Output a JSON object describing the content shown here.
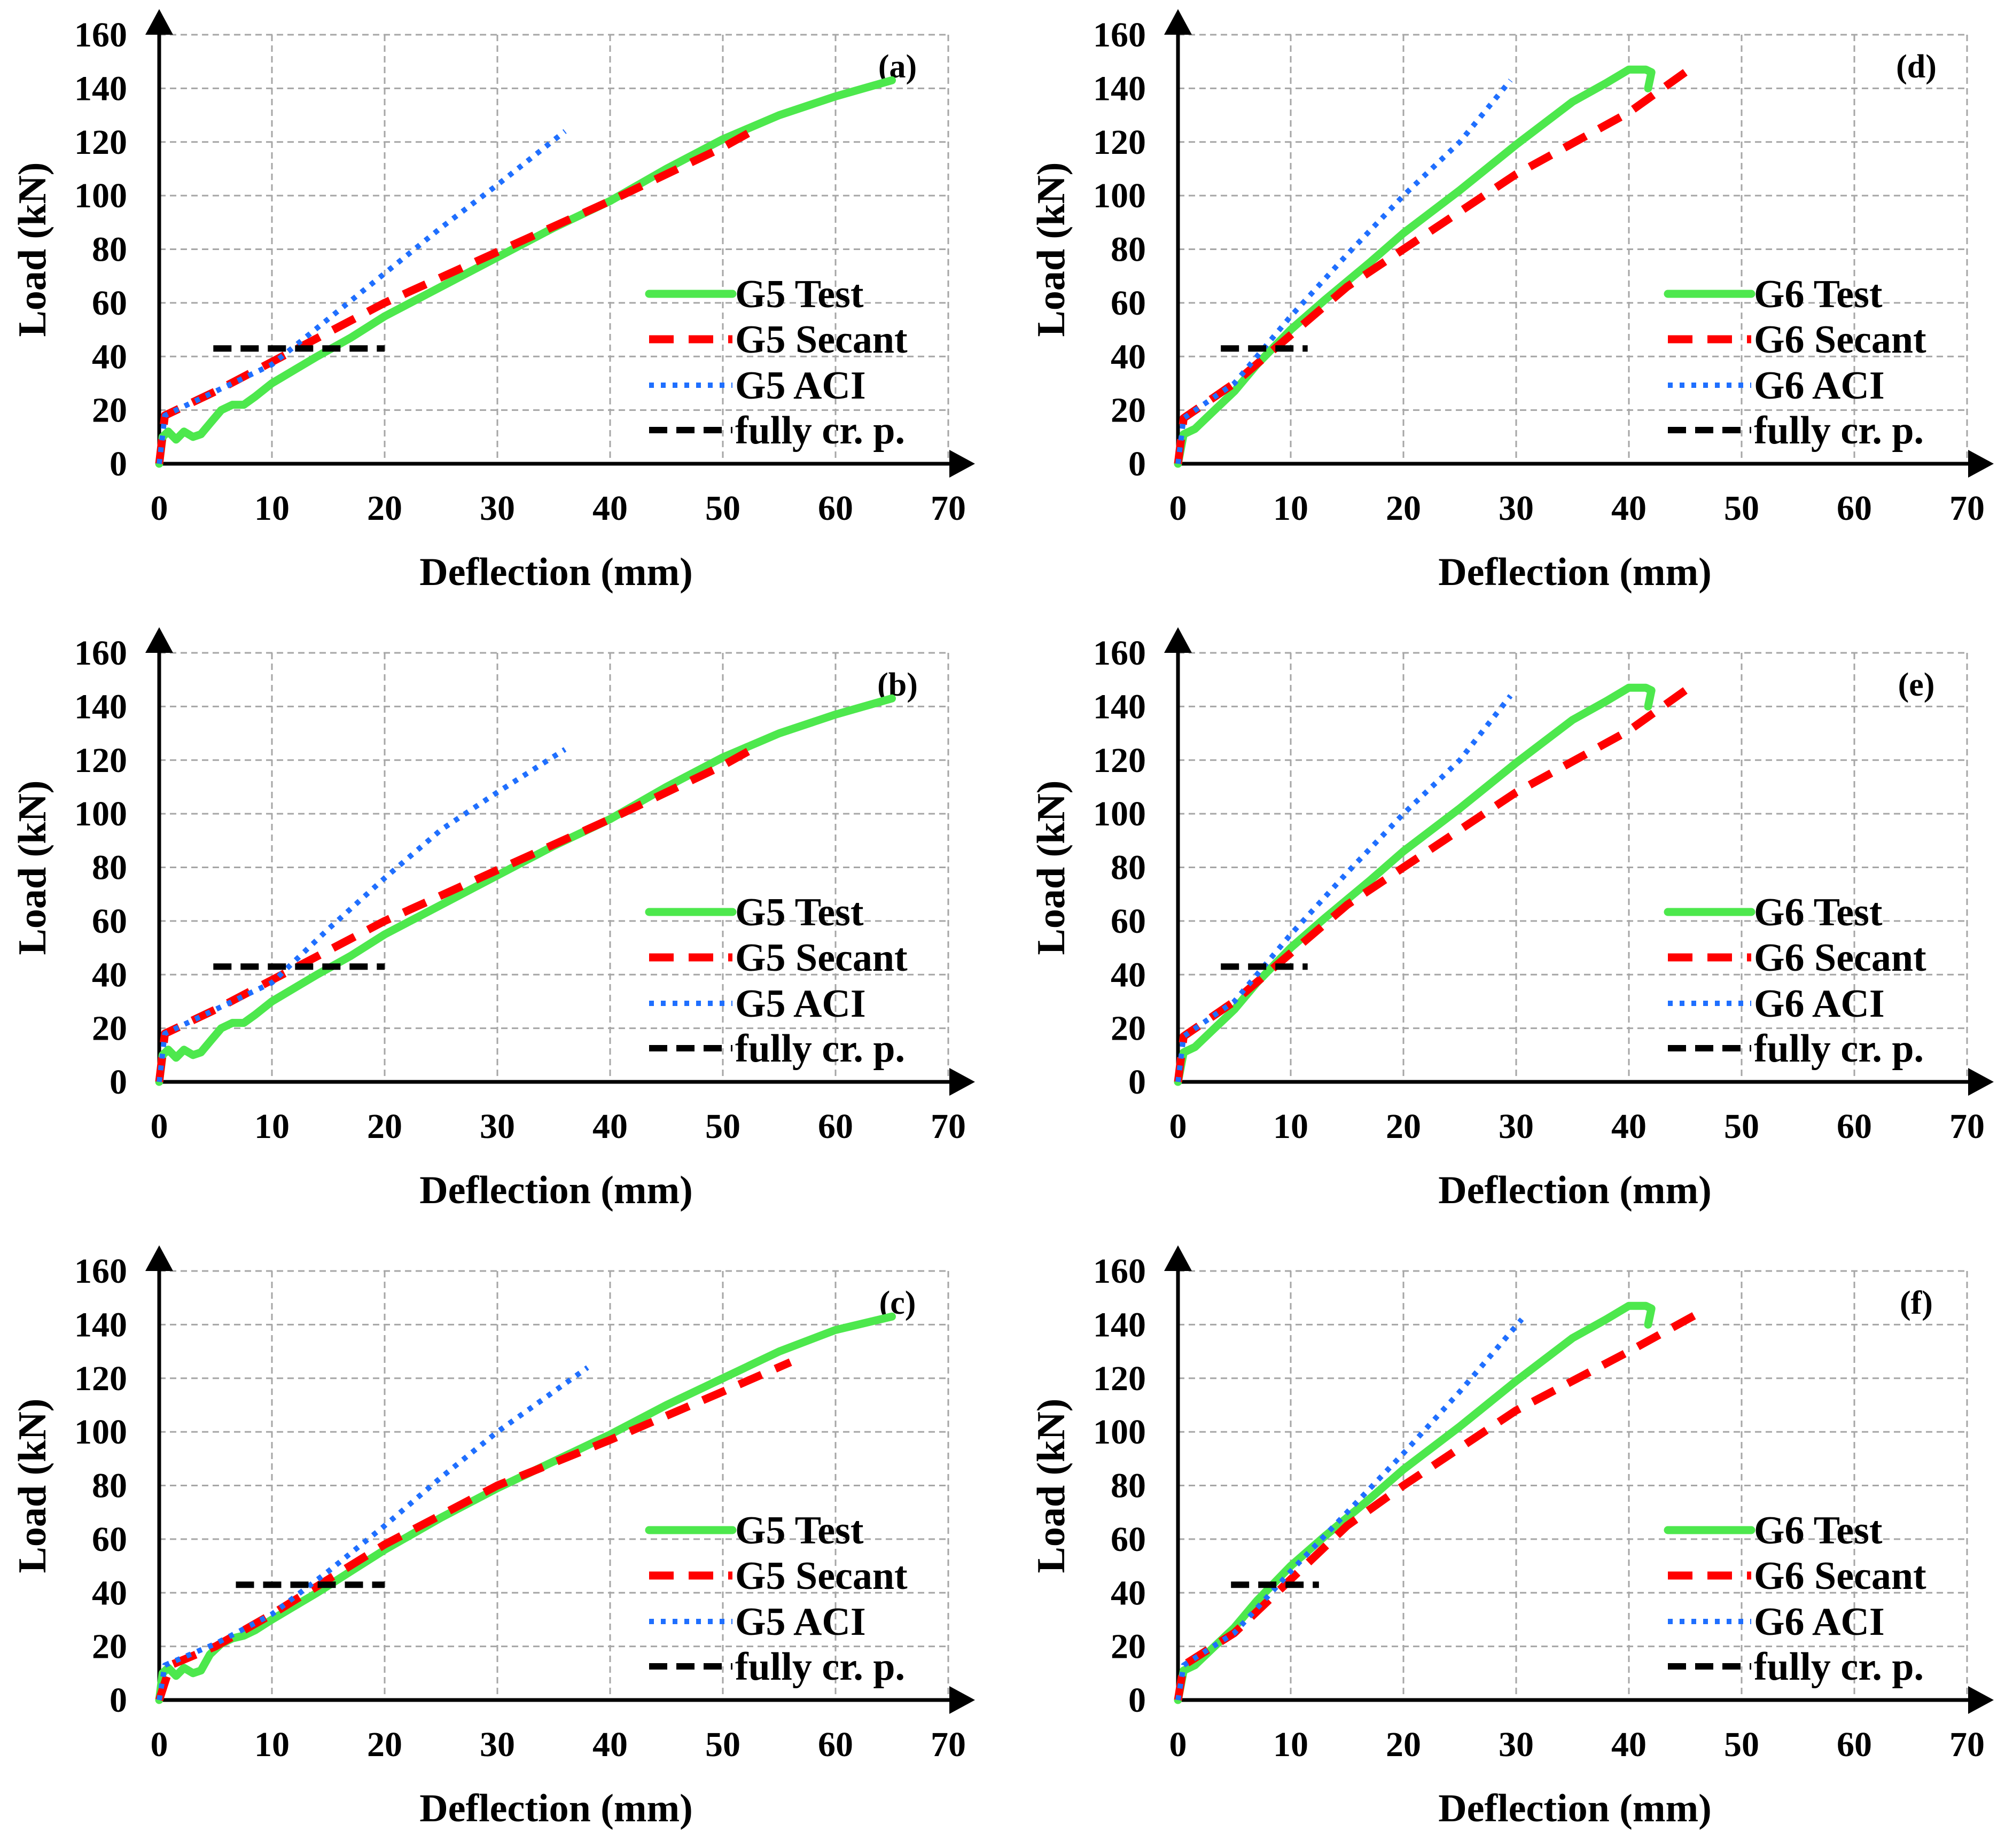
{
  "colors": {
    "test": "#4de84d",
    "secant": "#ff0000",
    "aci": "#1f6fff",
    "cracking": "#000000",
    "grid": "#a6a6a6"
  },
  "chart_data": [
    {
      "type": "line",
      "panel_label": "(a)",
      "xlabel": "Deflection (mm)",
      "ylabel": "Load (kN)",
      "xlim": [
        0,
        70
      ],
      "ylim": [
        0,
        160
      ],
      "xticks": [
        "0",
        "10",
        "20",
        "30",
        "40",
        "50",
        "60",
        "70"
      ],
      "yticks": [
        "0",
        "20",
        "40",
        "60",
        "80",
        "100",
        "120",
        "140",
        "160"
      ],
      "grid": true,
      "legend_position": "right-middle",
      "series": [
        {
          "name": "G5 Test",
          "style": "test",
          "x": [
            0,
            0.3,
            0.8,
            1.5,
            2.2,
            3,
            3.7,
            4.5,
            5.5,
            6.5,
            7.5,
            8.5,
            10,
            12,
            14,
            17,
            20,
            25,
            30,
            35,
            40,
            45,
            50,
            55,
            60,
            65
          ],
          "y": [
            0,
            10,
            12,
            9,
            12,
            10,
            11,
            15,
            20,
            22,
            22,
            25,
            30,
            35,
            40,
            47,
            55,
            66,
            77,
            88,
            98,
            110,
            121,
            130,
            137,
            143
          ]
        },
        {
          "name": "G5 Secant",
          "style": "secant",
          "x": [
            0,
            0.5,
            5,
            10,
            20,
            30,
            40,
            50,
            53
          ],
          "y": [
            0,
            18,
            27,
            38,
            60,
            79,
            98,
            118,
            125
          ]
        },
        {
          "name": "G5 ACI",
          "style": "aci",
          "x": [
            0,
            0.5,
            5,
            10,
            15,
            20,
            25,
            30,
            36
          ],
          "y": [
            0,
            18,
            27,
            37,
            54,
            71,
            88,
            104,
            124
          ]
        },
        {
          "name": "fully cr. p.",
          "style": "cracking",
          "x": [
            4.8,
            20
          ],
          "y": [
            43,
            43
          ]
        }
      ]
    },
    {
      "type": "line",
      "panel_label": "(d)",
      "xlabel": "Deflection (mm)",
      "ylabel": "Load (kN)",
      "xlim": [
        0,
        70
      ],
      "ylim": [
        0,
        160
      ],
      "xticks": [
        "0",
        "10",
        "20",
        "30",
        "40",
        "50",
        "60",
        "70"
      ],
      "yticks": [
        "0",
        "20",
        "40",
        "60",
        "80",
        "100",
        "120",
        "140",
        "160"
      ],
      "grid": true,
      "legend_position": "right-middle",
      "series": [
        {
          "name": "G6 Test",
          "style": "test",
          "x": [
            0,
            0.5,
            1.5,
            3,
            5,
            7,
            10,
            13,
            17,
            20,
            25,
            30,
            35,
            38,
            40,
            41.5,
            42,
            41.7
          ],
          "y": [
            0,
            11,
            13,
            19,
            27,
            37,
            50,
            61,
            75,
            86,
            102,
            119,
            135,
            142,
            147,
            147,
            146,
            140
          ]
        },
        {
          "name": "G6 Secant",
          "style": "secant",
          "x": [
            0,
            0.5,
            5,
            10,
            15,
            20,
            30,
            40,
            45
          ],
          "y": [
            0,
            17,
            30,
            48,
            66,
            80,
            108,
            131,
            146
          ]
        },
        {
          "name": "G6 ACI",
          "style": "aci",
          "x": [
            0,
            0.5,
            5,
            10,
            15,
            20,
            25,
            29.5
          ],
          "y": [
            0,
            17,
            30,
            55,
            78,
            100,
            120,
            143
          ]
        },
        {
          "name": "fully cr. p.",
          "style": "cracking",
          "x": [
            3.8,
            11.5
          ],
          "y": [
            43,
            43
          ]
        }
      ]
    },
    {
      "type": "line",
      "panel_label": "(b)",
      "xlabel": "Deflection (mm)",
      "ylabel": "Load (kN)",
      "xlim": [
        0,
        70
      ],
      "ylim": [
        0,
        160
      ],
      "xticks": [
        "0",
        "10",
        "20",
        "30",
        "40",
        "50",
        "60",
        "70"
      ],
      "yticks": [
        "0",
        "20",
        "40",
        "60",
        "80",
        "100",
        "120",
        "140",
        "160"
      ],
      "grid": true,
      "legend_position": "right-middle",
      "series": [
        {
          "name": "G5 Test",
          "style": "test",
          "x": [
            0,
            0.3,
            0.8,
            1.5,
            2.2,
            3,
            3.7,
            4.5,
            5.5,
            6.5,
            7.5,
            8.5,
            10,
            12,
            14,
            17,
            20,
            25,
            30,
            35,
            40,
            45,
            50,
            55,
            60,
            65
          ],
          "y": [
            0,
            10,
            12,
            9,
            12,
            10,
            11,
            15,
            20,
            22,
            22,
            25,
            30,
            35,
            40,
            47,
            55,
            66,
            77,
            88,
            98,
            110,
            121,
            130,
            137,
            143
          ]
        },
        {
          "name": "G5 Secant",
          "style": "secant",
          "x": [
            0,
            0.5,
            5,
            10,
            20,
            30,
            40,
            50,
            53
          ],
          "y": [
            0,
            18,
            27,
            38,
            60,
            79,
            98,
            118,
            125
          ]
        },
        {
          "name": "G5 ACI",
          "style": "aci",
          "x": [
            0,
            0.5,
            5,
            10,
            15,
            20,
            25,
            30,
            36
          ],
          "y": [
            0,
            18,
            27,
            37,
            57,
            76,
            94,
            108,
            124
          ]
        },
        {
          "name": "fully cr. p.",
          "style": "cracking",
          "x": [
            4.8,
            20
          ],
          "y": [
            43,
            43
          ]
        }
      ]
    },
    {
      "type": "line",
      "panel_label": "(e)",
      "xlabel": "Deflection (mm)",
      "ylabel": "Load (kN)",
      "xlim": [
        0,
        70
      ],
      "ylim": [
        0,
        160
      ],
      "xticks": [
        "0",
        "10",
        "20",
        "30",
        "40",
        "50",
        "60",
        "70"
      ],
      "yticks": [
        "0",
        "20",
        "40",
        "60",
        "80",
        "100",
        "120",
        "140",
        "160"
      ],
      "grid": true,
      "legend_position": "right-middle",
      "series": [
        {
          "name": "G6 Test",
          "style": "test",
          "x": [
            0,
            0.5,
            1.5,
            3,
            5,
            7,
            10,
            13,
            17,
            20,
            25,
            30,
            35,
            38,
            40,
            41.5,
            42,
            41.7
          ],
          "y": [
            0,
            11,
            13,
            19,
            27,
            37,
            50,
            61,
            75,
            86,
            102,
            119,
            135,
            142,
            147,
            147,
            146,
            140
          ]
        },
        {
          "name": "G6 Secant",
          "style": "secant",
          "x": [
            0,
            0.5,
            5,
            10,
            15,
            20,
            30,
            40,
            45
          ],
          "y": [
            0,
            17,
            30,
            48,
            66,
            80,
            108,
            131,
            146
          ]
        },
        {
          "name": "G6 ACI",
          "style": "aci",
          "x": [
            0,
            0.5,
            5,
            10,
            15,
            20,
            25,
            29.5
          ],
          "y": [
            0,
            17,
            30,
            55,
            78,
            100,
            120,
            144
          ]
        },
        {
          "name": "fully cr. p.",
          "style": "cracking",
          "x": [
            3.8,
            11.5
          ],
          "y": [
            43,
            43
          ]
        }
      ]
    },
    {
      "type": "line",
      "panel_label": "(c)",
      "xlabel": "Deflection (mm)",
      "ylabel": "Load (kN)",
      "xlim": [
        0,
        70
      ],
      "ylim": [
        0,
        160
      ],
      "xticks": [
        "0",
        "10",
        "20",
        "30",
        "40",
        "50",
        "60",
        "70"
      ],
      "yticks": [
        "0",
        "20",
        "40",
        "60",
        "80",
        "100",
        "120",
        "140",
        "160"
      ],
      "grid": true,
      "legend_position": "right-middle",
      "series": [
        {
          "name": "G5 Test",
          "style": "test",
          "x": [
            0,
            0.3,
            0.8,
            1.5,
            2.2,
            3,
            3.7,
            4.5,
            5.5,
            6.5,
            7.5,
            8.5,
            10,
            12,
            14,
            17,
            20,
            25,
            30,
            35,
            40,
            45,
            50,
            55,
            60,
            65
          ],
          "y": [
            0,
            10,
            12,
            9,
            12,
            10,
            11,
            17,
            21,
            23,
            24,
            26,
            30,
            35,
            40,
            48,
            56,
            68,
            79,
            89,
            99,
            110,
            120,
            130,
            138,
            143
          ]
        },
        {
          "name": "G5 Secant",
          "style": "secant",
          "x": [
            0,
            1,
            5,
            10,
            20,
            30,
            40,
            50,
            56
          ],
          "y": [
            0,
            13,
            20,
            32,
            58,
            80,
            97,
            115,
            126
          ]
        },
        {
          "name": "G5 ACI",
          "style": "aci",
          "x": [
            0,
            0.5,
            5,
            10,
            15,
            20,
            25,
            30,
            38
          ],
          "y": [
            0,
            13,
            21,
            32,
            48,
            65,
            83,
            100,
            124
          ]
        },
        {
          "name": "fully cr. p.",
          "style": "cracking",
          "x": [
            6.8,
            20
          ],
          "y": [
            43,
            43
          ]
        }
      ]
    },
    {
      "type": "line",
      "panel_label": "(f)",
      "xlabel": "Deflection (mm)",
      "ylabel": "Load (kN)",
      "xlim": [
        0,
        70
      ],
      "ylim": [
        0,
        160
      ],
      "xticks": [
        "0",
        "10",
        "20",
        "30",
        "40",
        "50",
        "60",
        "70"
      ],
      "yticks": [
        "0",
        "20",
        "40",
        "60",
        "80",
        "100",
        "120",
        "140",
        "160"
      ],
      "grid": true,
      "legend_position": "right-middle",
      "series": [
        {
          "name": "G6 Test",
          "style": "test",
          "x": [
            0,
            0.5,
            1.5,
            3,
            5,
            7,
            10,
            13,
            17,
            20,
            25,
            30,
            35,
            38,
            40,
            41.5,
            42,
            41.7
          ],
          "y": [
            0,
            11,
            13,
            19,
            27,
            37,
            50,
            61,
            75,
            86,
            102,
            119,
            135,
            142,
            147,
            147,
            146,
            140
          ]
        },
        {
          "name": "G6 Secant",
          "style": "secant",
          "x": [
            0,
            0.5,
            5,
            10,
            15,
            20,
            30,
            40,
            46.5
          ],
          "y": [
            0,
            13,
            25,
            45,
            65,
            80,
            108,
            130,
            145
          ]
        },
        {
          "name": "G6 ACI",
          "style": "aci",
          "x": [
            0,
            0.5,
            5,
            10,
            15,
            20,
            25,
            30.5
          ],
          "y": [
            0,
            13,
            25,
            48,
            70,
            92,
            115,
            142
          ]
        },
        {
          "name": "fully cr. p.",
          "style": "cracking",
          "x": [
            4.7,
            12.5
          ],
          "y": [
            43,
            43
          ]
        }
      ]
    }
  ]
}
